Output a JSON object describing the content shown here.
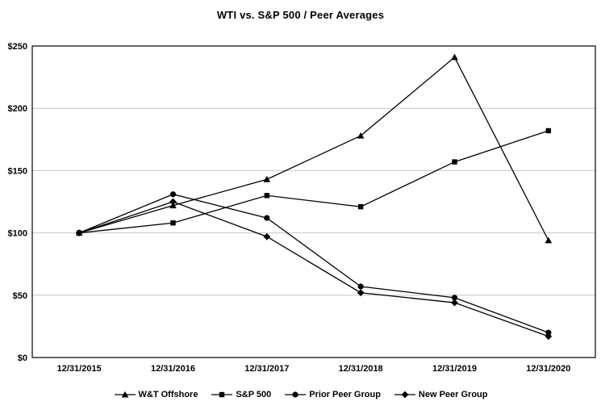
{
  "title": "WTI vs. S&P 500 / Peer Averages",
  "chart_data": {
    "type": "line",
    "title": "WTI vs. S&P 500 / Peer Averages",
    "categories": [
      "12/31/2015",
      "12/31/2016",
      "12/31/2017",
      "12/31/2018",
      "12/31/2019",
      "12/31/2020"
    ],
    "series": [
      {
        "name": "W&T Offshore",
        "marker": "triangle",
        "values": [
          100,
          122,
          143,
          178,
          241,
          94
        ]
      },
      {
        "name": "S&P 500",
        "marker": "square",
        "values": [
          100,
          108,
          130,
          121,
          157,
          182
        ]
      },
      {
        "name": "Prior Peer Group",
        "marker": "circle",
        "values": [
          100,
          131,
          112,
          57,
          48,
          20
        ]
      },
      {
        "name": "New Peer Group",
        "marker": "diamond",
        "values": [
          100,
          125,
          97,
          52,
          44,
          17
        ]
      }
    ],
    "ylim": [
      0,
      250
    ],
    "ytick_step": 50,
    "ytick_labels": [
      "$0",
      "$50",
      "$100",
      "$150",
      "$200",
      "$250"
    ],
    "xlabel": "",
    "ylabel": "",
    "grid": true,
    "legend_position": "bottom",
    "line_color": "#000000",
    "grid_color": "#c6c6c6"
  }
}
